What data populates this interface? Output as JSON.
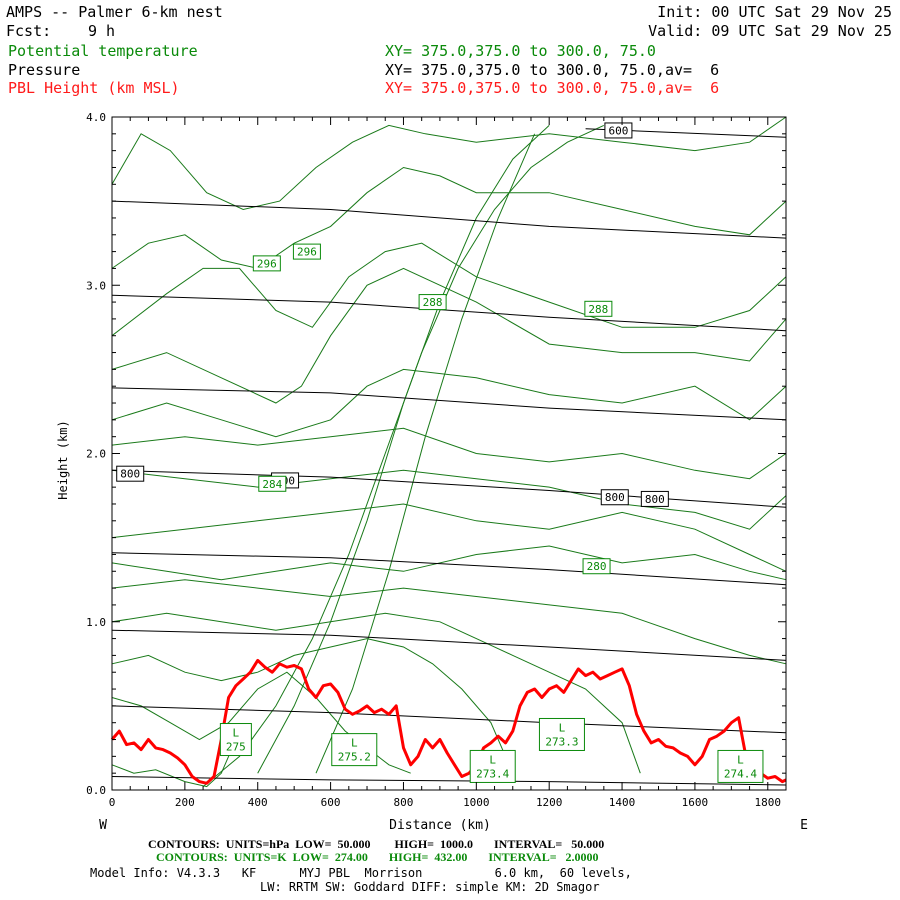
{
  "header": {
    "title": "AMPS -- Palmer 6-km nest",
    "init": "Init: 00 UTC Sat 29 Nov 25",
    "fcst_label": "Fcst:",
    "fcst_value": "9 h",
    "valid": "Valid: 09 UTC Sat 29 Nov 25",
    "field1": "Potential temperature",
    "field1_xy": "XY= 375.0,375.0 to 300.0, 75.0",
    "field2": "Pressure",
    "field2_xy": "XY= 375.0,375.0 to 300.0, 75.0,av=  6",
    "field3": "PBL Height (km MSL)",
    "field3_xy": "XY= 375.0,375.0 to 300.0, 75.0,av=  6"
  },
  "colors": {
    "theta": "#1a7a1a",
    "pressure": "#000000",
    "pbl": "#ff0000",
    "label_green": "#0a8a0a"
  },
  "footer": {
    "line1": "CONTOURS:  UNITS=hPa  LOW=  50.000        HIGH=  1000.0       INTERVAL=   50.000",
    "line2": "CONTOURS:  UNITS=K  LOW=  274.00       HIGH=  432.00       INTERVAL=   2.0000",
    "line3": "Model Info: V4.3.3   KF      MYJ PBL  Morrison          6.0 km,  60 levels,",
    "line4": "LW: RRTM SW: Goddard DIFF: simple KM: 2D Smagor"
  },
  "chart_data": {
    "type": "line",
    "title": "AMPS -- Palmer 6-km nest",
    "xlabel": "Distance (km)",
    "ylabel": "Height (km)",
    "xlim": [
      0,
      1850
    ],
    "ylim": [
      0,
      4.0
    ],
    "x_ticks": [
      0,
      200,
      400,
      600,
      800,
      1000,
      1200,
      1400,
      1600,
      1800
    ],
    "y_ticks": [
      0.0,
      1.0,
      2.0,
      3.0,
      4.0
    ],
    "y_tick_labels": [
      "0.0",
      "1.0",
      "2.0",
      "3.0",
      "4.0"
    ],
    "west_label": "W",
    "east_label": "E",
    "pressure_contours": [
      {
        "x": [
          0,
          600,
          1200,
          1850
        ],
        "y": [
          0.08,
          0.06,
          0.05,
          0.03
        ]
      },
      {
        "x": [
          0,
          600,
          1200,
          1850
        ],
        "y": [
          0.5,
          0.46,
          0.4,
          0.34
        ]
      },
      {
        "x": [
          0,
          600,
          1200,
          1850
        ],
        "y": [
          0.95,
          0.92,
          0.85,
          0.77
        ]
      },
      {
        "x": [
          0,
          600,
          1200,
          1850
        ],
        "y": [
          1.41,
          1.38,
          1.31,
          1.22
        ]
      },
      {
        "x": [
          0,
          600,
          1200,
          1850
        ],
        "y": [
          1.9,
          1.86,
          1.78,
          1.68
        ]
      },
      {
        "x": [
          0,
          600,
          1200,
          1850
        ],
        "y": [
          2.39,
          2.36,
          2.27,
          2.2
        ]
      },
      {
        "x": [
          0,
          600,
          1200,
          1850
        ],
        "y": [
          2.94,
          2.9,
          2.81,
          2.73
        ]
      },
      {
        "x": [
          0,
          600,
          1200,
          1850
        ],
        "y": [
          3.5,
          3.45,
          3.35,
          3.28
        ]
      },
      {
        "x": [
          1300,
          1850
        ],
        "y": [
          3.93,
          3.88
        ]
      }
    ],
    "theta_contours": [
      {
        "x": [
          0,
          60,
          120,
          200,
          260,
          300,
          340
        ],
        "y": [
          0.15,
          0.1,
          0.12,
          0.05,
          0.02,
          0.1,
          0.3
        ]
      },
      {
        "x": [
          0,
          80,
          160,
          240,
          320,
          400,
          480,
          560,
          640,
          700,
          760,
          820
        ],
        "y": [
          0.55,
          0.5,
          0.4,
          0.3,
          0.4,
          0.6,
          0.7,
          0.55,
          0.35,
          0.25,
          0.15,
          0.1
        ]
      },
      {
        "x": [
          0,
          100,
          200,
          300,
          400,
          500,
          600,
          700,
          800,
          880,
          960,
          1040,
          1100
        ],
        "y": [
          0.75,
          0.8,
          0.7,
          0.65,
          0.7,
          0.8,
          0.85,
          0.9,
          0.85,
          0.75,
          0.6,
          0.4,
          0.1
        ]
      },
      {
        "x": [
          0,
          150,
          300,
          450,
          600,
          750,
          900,
          1000,
          1100,
          1200,
          1300,
          1400,
          1450
        ],
        "y": [
          1.0,
          1.05,
          1.0,
          0.95,
          1.0,
          1.05,
          1.0,
          0.9,
          0.8,
          0.7,
          0.6,
          0.4,
          0.1
        ]
      },
      {
        "x": [
          0,
          200,
          400,
          600,
          800,
          1000,
          1200,
          1400,
          1600,
          1750,
          1850
        ],
        "y": [
          1.2,
          1.25,
          1.2,
          1.15,
          1.2,
          1.15,
          1.1,
          1.05,
          0.9,
          0.8,
          0.75
        ]
      },
      {
        "x": [
          0,
          150,
          300,
          450,
          600,
          800,
          1000,
          1200,
          1400,
          1600,
          1750,
          1850
        ],
        "y": [
          1.35,
          1.3,
          1.25,
          1.3,
          1.35,
          1.3,
          1.4,
          1.45,
          1.35,
          1.4,
          1.3,
          1.25
        ]
      },
      {
        "x": [
          0,
          200,
          400,
          600,
          800,
          1000,
          1200,
          1400,
          1600,
          1750,
          1850
        ],
        "y": [
          1.5,
          1.55,
          1.6,
          1.65,
          1.7,
          1.6,
          1.55,
          1.65,
          1.55,
          1.4,
          1.3
        ]
      },
      {
        "x": [
          0,
          200,
          400,
          600,
          800,
          1000,
          1200,
          1400,
          1600,
          1750,
          1850
        ],
        "y": [
          1.9,
          1.85,
          1.8,
          1.85,
          1.9,
          1.85,
          1.8,
          1.7,
          1.65,
          1.55,
          1.75
        ]
      },
      {
        "x": [
          0,
          200,
          400,
          600,
          800,
          1000,
          1200,
          1400,
          1600,
          1750,
          1850
        ],
        "y": [
          2.05,
          2.1,
          2.05,
          2.1,
          2.15,
          2.0,
          1.95,
          2.0,
          1.9,
          1.85,
          2.0
        ]
      },
      {
        "x": [
          0,
          150,
          300,
          450,
          600,
          700,
          800,
          1000,
          1200,
          1400,
          1600,
          1750,
          1850
        ],
        "y": [
          2.2,
          2.3,
          2.2,
          2.1,
          2.2,
          2.4,
          2.5,
          2.45,
          2.35,
          2.3,
          2.4,
          2.2,
          2.4
        ]
      },
      {
        "x": [
          0,
          150,
          300,
          450,
          520,
          600,
          700,
          800,
          1000,
          1200,
          1400,
          1600,
          1750,
          1850
        ],
        "y": [
          2.5,
          2.6,
          2.45,
          2.3,
          2.4,
          2.7,
          3.0,
          3.1,
          2.9,
          2.65,
          2.6,
          2.6,
          2.55,
          2.8
        ]
      },
      {
        "x": [
          0,
          150,
          250,
          350,
          450,
          550,
          650,
          750,
          850,
          1000,
          1200,
          1400,
          1600,
          1750,
          1850
        ],
        "y": [
          2.7,
          2.95,
          3.1,
          3.1,
          2.85,
          2.75,
          3.05,
          3.2,
          3.25,
          3.05,
          2.9,
          2.75,
          2.75,
          2.85,
          3.05
        ]
      },
      {
        "x": [
          0,
          100,
          200,
          300,
          400,
          500,
          600,
          700,
          800,
          900,
          1000,
          1200,
          1400,
          1600,
          1750,
          1850
        ],
        "y": [
          3.1,
          3.25,
          3.3,
          3.15,
          3.1,
          3.25,
          3.35,
          3.55,
          3.7,
          3.65,
          3.55,
          3.55,
          3.45,
          3.35,
          3.3,
          3.5
        ]
      },
      {
        "x": [
          0,
          80,
          160,
          260,
          360,
          460,
          560,
          660,
          760,
          860,
          1000,
          1200,
          1400,
          1600,
          1750,
          1850
        ],
        "y": [
          3.6,
          3.9,
          3.8,
          3.55,
          3.45,
          3.5,
          3.7,
          3.85,
          3.95,
          3.9,
          3.85,
          3.9,
          3.85,
          3.8,
          3.85,
          4.0
        ]
      },
      {
        "x": [
          250,
          350,
          450,
          550,
          650,
          750,
          850,
          950,
          1050,
          1150,
          1250,
          1350
        ],
        "y": [
          0.02,
          0.2,
          0.5,
          0.9,
          1.4,
          2.0,
          2.6,
          3.1,
          3.45,
          3.7,
          3.85,
          3.95
        ]
      },
      {
        "x": [
          400,
          500,
          600,
          700,
          800,
          900,
          1000,
          1100,
          1200
        ],
        "y": [
          0.1,
          0.5,
          1.0,
          1.6,
          2.3,
          2.9,
          3.4,
          3.75,
          3.95
        ]
      },
      {
        "x": [
          560,
          660,
          760,
          860,
          960,
          1060,
          1160
        ],
        "y": [
          0.1,
          0.6,
          1.3,
          2.1,
          2.8,
          3.4,
          3.9
        ]
      }
    ],
    "pbl_height": {
      "x": [
        0,
        20,
        40,
        60,
        80,
        100,
        120,
        140,
        160,
        180,
        200,
        220,
        240,
        260,
        280,
        300,
        320,
        340,
        360,
        380,
        400,
        420,
        440,
        460,
        480,
        500,
        520,
        540,
        560,
        580,
        600,
        620,
        640,
        660,
        680,
        700,
        720,
        740,
        760,
        780,
        800,
        820,
        840,
        860,
        880,
        900,
        920,
        940,
        960,
        980,
        1000,
        1020,
        1040,
        1060,
        1080,
        1100,
        1120,
        1140,
        1160,
        1180,
        1200,
        1220,
        1240,
        1260,
        1280,
        1300,
        1320,
        1340,
        1360,
        1380,
        1400,
        1420,
        1440,
        1460,
        1480,
        1500,
        1520,
        1540,
        1560,
        1580,
        1600,
        1620,
        1640,
        1660,
        1680,
        1700,
        1720,
        1740,
        1760,
        1780,
        1800,
        1820,
        1840,
        1850
      ],
      "y": [
        0.3,
        0.35,
        0.27,
        0.28,
        0.24,
        0.3,
        0.25,
        0.24,
        0.22,
        0.19,
        0.15,
        0.08,
        0.05,
        0.04,
        0.08,
        0.3,
        0.55,
        0.62,
        0.66,
        0.7,
        0.77,
        0.73,
        0.7,
        0.75,
        0.73,
        0.74,
        0.72,
        0.6,
        0.55,
        0.62,
        0.63,
        0.58,
        0.48,
        0.45,
        0.47,
        0.5,
        0.46,
        0.48,
        0.45,
        0.5,
        0.25,
        0.15,
        0.2,
        0.3,
        0.25,
        0.3,
        0.22,
        0.15,
        0.08,
        0.1,
        0.15,
        0.25,
        0.28,
        0.32,
        0.28,
        0.35,
        0.5,
        0.58,
        0.6,
        0.55,
        0.6,
        0.62,
        0.58,
        0.65,
        0.72,
        0.68,
        0.7,
        0.66,
        0.68,
        0.7,
        0.72,
        0.62,
        0.45,
        0.35,
        0.28,
        0.3,
        0.26,
        0.25,
        0.22,
        0.2,
        0.15,
        0.2,
        0.3,
        0.32,
        0.35,
        0.4,
        0.43,
        0.2,
        0.22,
        0.1,
        0.07,
        0.08,
        0.05,
        0.06
      ]
    },
    "pressure_labels": [
      {
        "text": "600",
        "x": 1390,
        "y": 3.92
      },
      {
        "text": "800",
        "x": 50,
        "y": 1.88
      },
      {
        "text": "800",
        "x": 475,
        "y": 1.84
      },
      {
        "text": "800",
        "x": 1380,
        "y": 1.74
      },
      {
        "text": "800",
        "x": 1490,
        "y": 1.73
      }
    ],
    "theta_labels": [
      {
        "text": "296",
        "x": 425,
        "y": 3.13
      },
      {
        "text": "296",
        "x": 535,
        "y": 3.2
      },
      {
        "text": "288",
        "x": 880,
        "y": 2.9
      },
      {
        "text": "288",
        "x": 1335,
        "y": 2.86
      },
      {
        "text": "284",
        "x": 440,
        "y": 1.82
      },
      {
        "text": "280",
        "x": 1330,
        "y": 1.33
      }
    ],
    "low_labels": [
      {
        "letter": "L",
        "value": "275",
        "x": 340,
        "y": 0.3
      },
      {
        "letter": "L",
        "value": "275.2",
        "x": 665,
        "y": 0.24
      },
      {
        "letter": "L",
        "value": "273.4",
        "x": 1045,
        "y": 0.14
      },
      {
        "letter": "L",
        "value": "273.3",
        "x": 1235,
        "y": 0.33
      },
      {
        "letter": "L",
        "value": "274.4",
        "x": 1725,
        "y": 0.14
      }
    ]
  }
}
